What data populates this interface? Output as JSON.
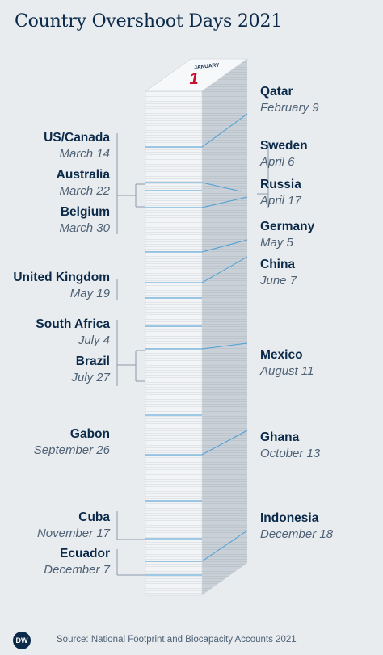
{
  "title": "Country Overshoot Days 2021",
  "calendar_top": {
    "month": "JANUARY",
    "day": "1"
  },
  "colors": {
    "text": "#0b2a4a",
    "line": "#4a9fd6",
    "date": "#4e6175",
    "red": "#c8102e"
  },
  "right_labels": [
    {
      "country": "Qatar",
      "date": "February 9"
    },
    {
      "country": "Sweden",
      "date": "April 6"
    },
    {
      "country": "Russia",
      "date": "April 17"
    },
    {
      "country": "Germany",
      "date": "May 5"
    },
    {
      "country": "China",
      "date": "June 7"
    },
    {
      "country": "Mexico",
      "date": "August 11"
    },
    {
      "country": "Ghana",
      "date": "October 13"
    },
    {
      "country": "Indonesia",
      "date": "December 18"
    }
  ],
  "left_labels": [
    {
      "country": "US/Canada",
      "date": "March 14"
    },
    {
      "country": "Australia",
      "date": "March 22"
    },
    {
      "country": "Belgium",
      "date": "March 30"
    },
    {
      "country": "United Kingdom",
      "date": "May 19"
    },
    {
      "country": "South Africa",
      "date": "July 4"
    },
    {
      "country": "Brazil",
      "date": "July 27"
    },
    {
      "country": "Gabon",
      "date": "September 26"
    },
    {
      "country": "Cuba",
      "date": "November 17"
    },
    {
      "country": "Ecuador",
      "date": "December 7"
    }
  ],
  "footer": {
    "logo": "DW",
    "source": "Source: National Footprint and Biocapacity Accounts 2021"
  }
}
